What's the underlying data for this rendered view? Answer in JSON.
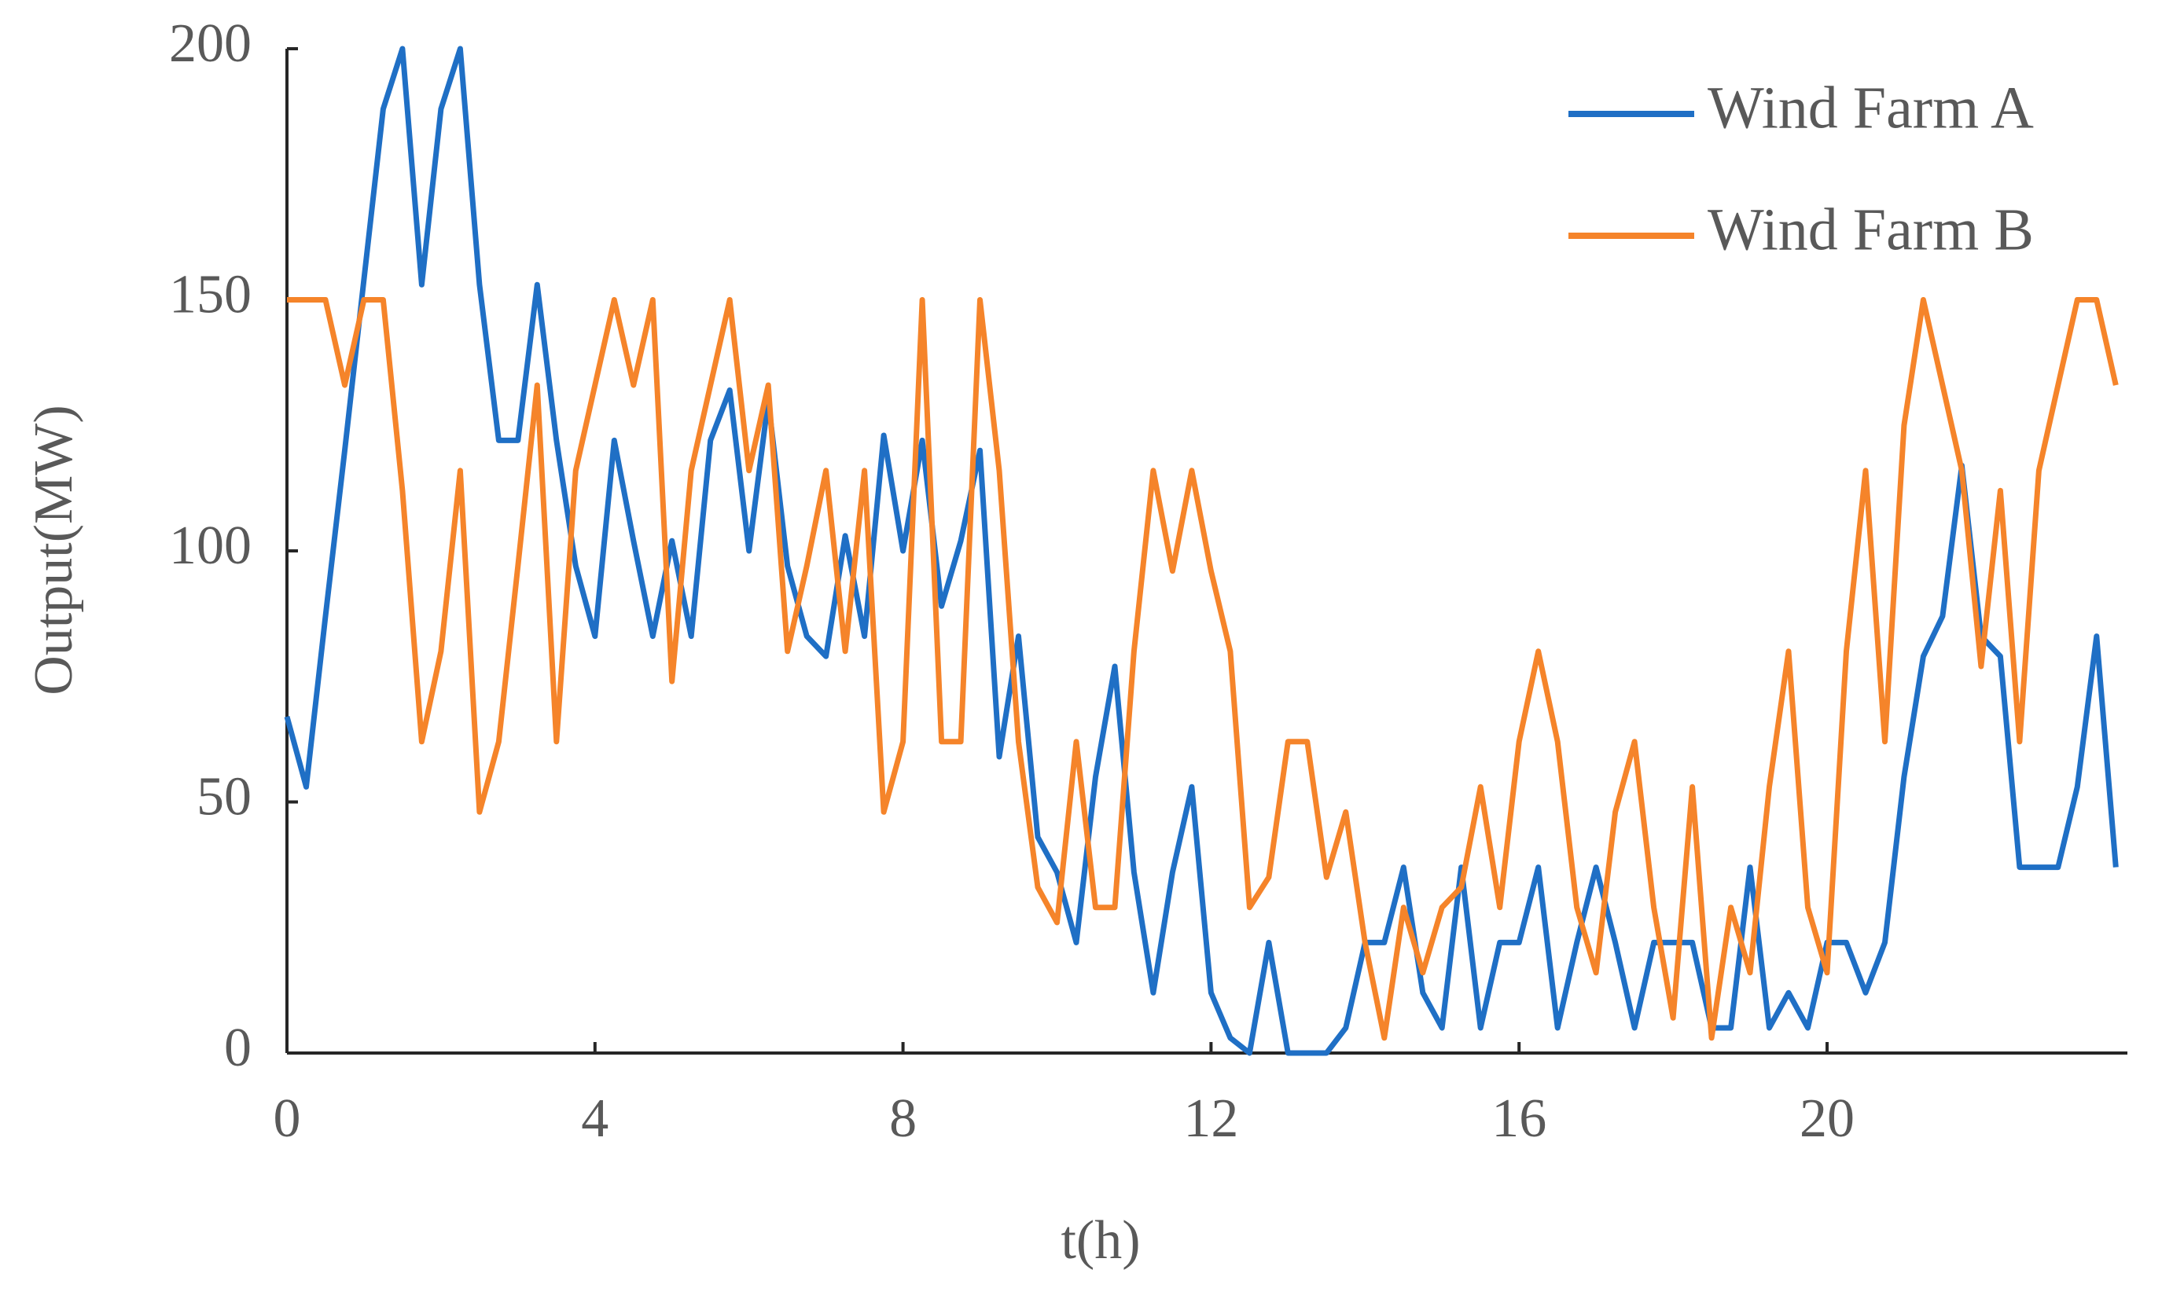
{
  "chart_data": {
    "type": "line",
    "xlabel": "t(h)",
    "ylabel": "Output(MW)",
    "x": [
      0,
      0.25,
      0.5,
      0.75,
      1,
      1.25,
      1.5,
      1.75,
      2,
      2.25,
      2.5,
      2.75,
      3,
      3.25,
      3.5,
      3.75,
      4,
      4.25,
      4.5,
      4.75,
      5,
      5.25,
      5.5,
      5.75,
      6,
      6.25,
      6.5,
      6.75,
      7,
      7.25,
      7.5,
      7.75,
      8,
      8.25,
      8.5,
      8.75,
      9,
      9.25,
      9.5,
      9.75,
      10,
      10.25,
      10.5,
      10.75,
      11,
      11.25,
      11.5,
      11.75,
      12,
      12.25,
      12.5,
      12.75,
      13,
      13.25,
      13.5,
      13.75,
      14,
      14.25,
      14.5,
      14.75,
      15,
      15.25,
      15.5,
      15.75,
      16,
      16.25,
      16.5,
      16.75,
      17,
      17.25,
      17.5,
      17.75,
      18,
      18.25,
      18.5,
      18.75,
      19,
      19.25,
      19.5,
      19.75,
      20,
      20.25,
      20.5,
      20.75,
      21,
      21.25,
      21.5,
      21.75,
      22,
      22.25,
      22.5,
      22.75,
      23,
      23.25,
      23.5,
      23.75
    ],
    "series": [
      {
        "name": "Wind Farm A",
        "color": "#1f6fc5",
        "values": [
          67,
          53,
          87,
          120,
          154,
          188,
          200,
          153,
          188,
          200,
          153,
          122,
          122,
          153,
          122,
          97,
          83,
          122,
          102,
          83,
          102,
          83,
          122,
          132,
          100,
          130,
          97,
          83,
          79,
          103,
          83,
          123,
          100,
          122,
          89,
          102,
          120,
          59,
          83,
          43,
          36,
          22,
          55,
          77,
          36,
          12,
          36,
          53,
          12,
          3,
          0,
          22,
          0,
          0,
          0,
          5,
          22,
          22,
          37,
          12,
          5,
          37,
          5,
          22,
          22,
          37,
          5,
          22,
          37,
          22,
          5,
          22,
          22,
          22,
          5,
          5,
          37,
          5,
          12,
          5,
          22,
          22,
          12,
          22,
          55,
          79,
          87,
          117,
          83,
          79,
          37,
          37,
          37,
          53,
          83,
          37
        ]
      },
      {
        "name": "Wind Farm B",
        "color": "#f5842a",
        "values": [
          150,
          150,
          150,
          133,
          150,
          150,
          112,
          62,
          80,
          116,
          48,
          62,
          97,
          133,
          62,
          116,
          133,
          150,
          133,
          150,
          74,
          116,
          133,
          150,
          116,
          133,
          80,
          97,
          116,
          80,
          116,
          48,
          62,
          150,
          62,
          62,
          150,
          116,
          62,
          33,
          26,
          62,
          29,
          29,
          80,
          116,
          96,
          116,
          96,
          80,
          29,
          35,
          62,
          62,
          35,
          48,
          22,
          3,
          29,
          16,
          29,
          33,
          53,
          29,
          62,
          80,
          62,
          29,
          16,
          48,
          62,
          29,
          7,
          53,
          3,
          29,
          16,
          53,
          80,
          29,
          16,
          80,
          116,
          62,
          125,
          150,
          133,
          116,
          77,
          112,
          62,
          116,
          133,
          150,
          150,
          133
        ]
      }
    ],
    "xlim": [
      0,
      23.9
    ],
    "xticks": [
      0,
      4,
      8,
      12,
      16,
      20
    ],
    "ylim": [
      0,
      200
    ],
    "yticks": [
      0,
      50,
      100,
      150,
      200
    ],
    "legend": "upper-right"
  }
}
